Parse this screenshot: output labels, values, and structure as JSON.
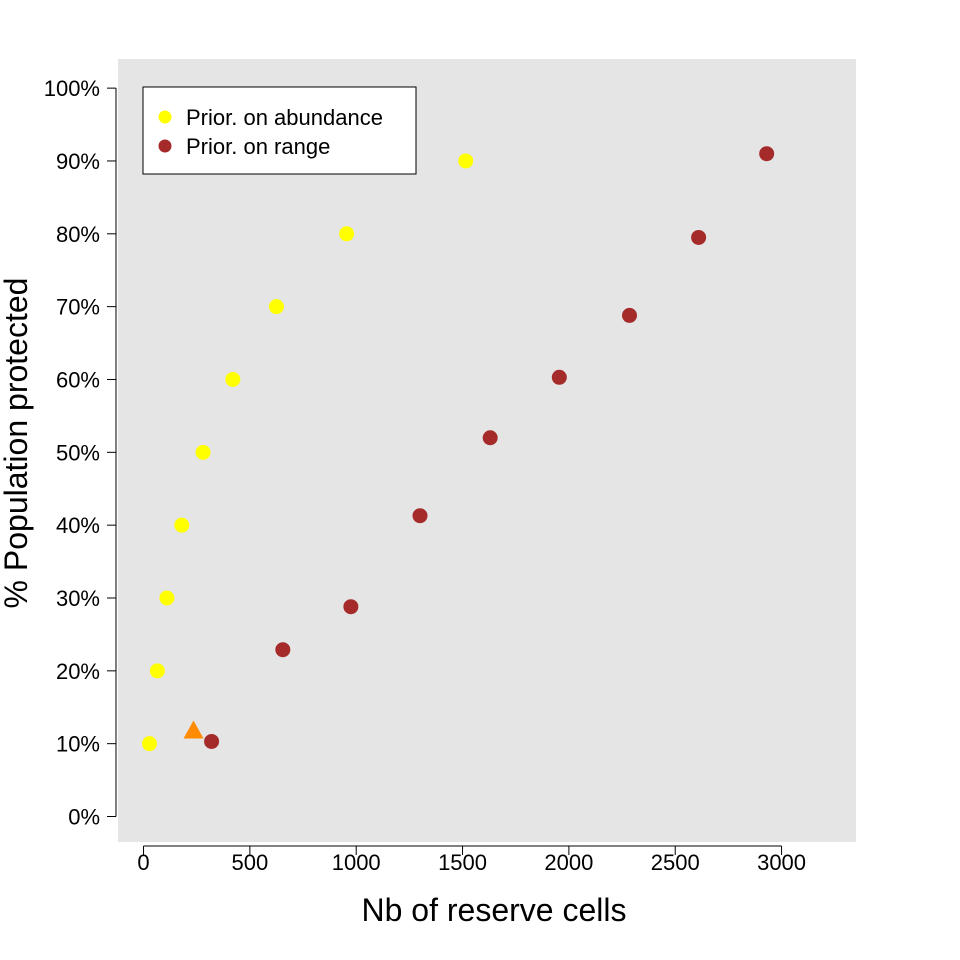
{
  "chart_data": {
    "type": "scatter",
    "xlabel": "Nb of reserve cells",
    "ylabel": "% Population protected",
    "xlim": [
      -120,
      3350
    ],
    "ylim": [
      -3.5,
      104
    ],
    "x_ticks": [
      0,
      500,
      1000,
      1500,
      2000,
      2500,
      3000
    ],
    "x_tick_labels": [
      "0",
      "500",
      "1000",
      "1500",
      "2000",
      "2500",
      "3000"
    ],
    "y_ticks": [
      0,
      10,
      20,
      30,
      40,
      50,
      60,
      70,
      80,
      90,
      100
    ],
    "y_tick_labels": [
      "0%",
      "10%",
      "20%",
      "30%",
      "40%",
      "50%",
      "60%",
      "70%",
      "80%",
      "90%",
      "100%"
    ],
    "grid": false,
    "background": "#e5e5e5",
    "legend_position": "top-left",
    "legend": [
      {
        "label": "Prior. on abundance",
        "color": "#ffff00"
      },
      {
        "label": "Prior. on range",
        "color": "#a52a2a"
      }
    ],
    "series": [
      {
        "name": "Prior. on abundance",
        "color": "#ffff00",
        "marker": "circle",
        "points": [
          [
            28,
            10
          ],
          [
            65,
            20
          ],
          [
            110,
            30
          ],
          [
            180,
            40
          ],
          [
            280,
            50
          ],
          [
            420,
            60
          ],
          [
            625,
            70
          ],
          [
            955,
            80
          ],
          [
            1515,
            90
          ]
        ]
      },
      {
        "name": "Prior. on range",
        "color": "#a52a2a",
        "marker": "circle",
        "points": [
          [
            320,
            10.3
          ],
          [
            655,
            22.9
          ],
          [
            975,
            28.8
          ],
          [
            1300,
            41.3
          ],
          [
            1630,
            52
          ],
          [
            1955,
            60.3
          ],
          [
            2285,
            68.8
          ],
          [
            2610,
            79.5
          ],
          [
            2930,
            91
          ]
        ]
      },
      {
        "color": "#ff8c00",
        "marker": "triangle",
        "points": [
          [
            235,
            11.7
          ]
        ]
      }
    ]
  }
}
